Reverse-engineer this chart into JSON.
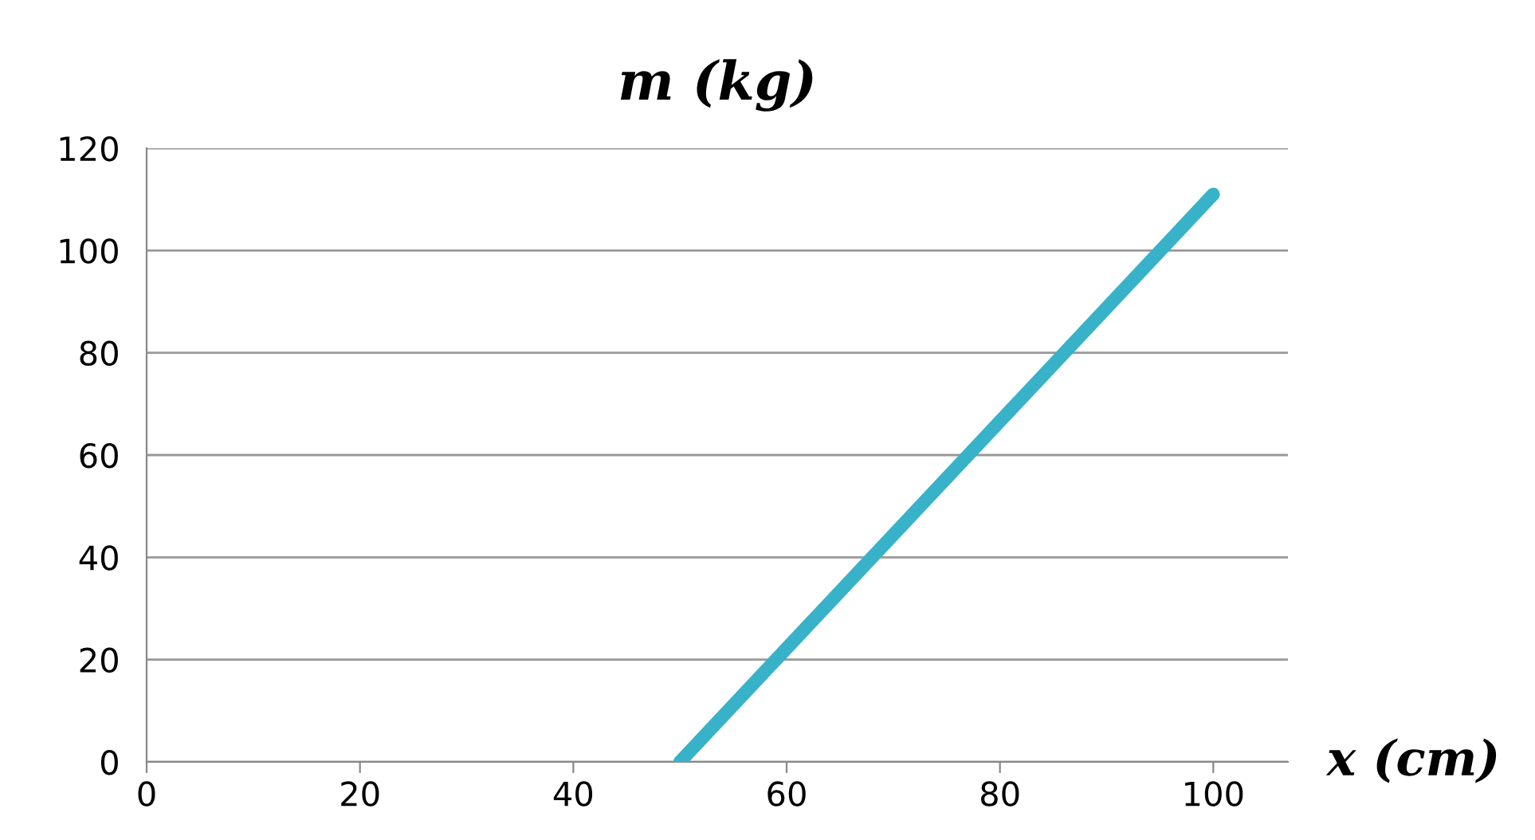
{
  "chart_data": {
    "type": "line",
    "title": "m (kg)",
    "xlabel": "x (cm)",
    "x": [
      50,
      100
    ],
    "series": [
      {
        "color": "#38b2c9",
        "values": [
          0,
          111
        ]
      }
    ],
    "xlim": [
      0,
      107
    ],
    "xticks": [
      0,
      20,
      40,
      60,
      80,
      100
    ],
    "ylim": [
      0,
      120
    ],
    "yticks": [
      0,
      20,
      40,
      60,
      80,
      100,
      120
    ],
    "grid": "y",
    "marker": "none",
    "line_style": "solid"
  }
}
